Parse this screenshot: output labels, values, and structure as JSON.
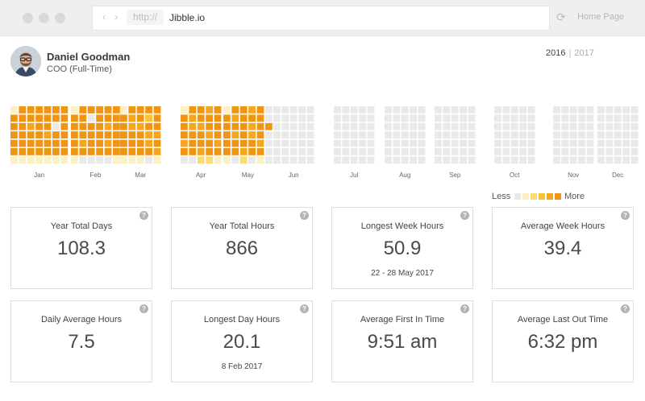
{
  "browser": {
    "protocol": "http://",
    "url": "Jibble.io",
    "home_label": "Home Page"
  },
  "user": {
    "name": "Daniel Goodman",
    "role": "COO (Full-Time)"
  },
  "year_selector": {
    "years": [
      "2016",
      "2017"
    ],
    "selected": "2016",
    "separator": "|"
  },
  "heatmap": {
    "months": [
      "Jan",
      "Feb",
      "Mar",
      "Apr",
      "May",
      "Jun",
      "Jul",
      "Aug",
      "Sep",
      "Oct",
      "Nov",
      "Dec"
    ],
    "legend_less": "Less",
    "legend_more": "More",
    "scale_colors": [
      "#e9e9e9",
      "#fbf1c4",
      "#f9dd72",
      "#f8c232",
      "#f4a61e",
      "#ef9413"
    ],
    "empty_color": "#e9e9e9",
    "month_grid": [
      [
        [
          1,
          5,
          5,
          5,
          5,
          5,
          1
        ],
        [
          5,
          5,
          5,
          5,
          5,
          5,
          1
        ],
        [
          5,
          5,
          4,
          5,
          5,
          5,
          1
        ],
        [
          5,
          5,
          5,
          5,
          5,
          5,
          1
        ],
        [
          5,
          5,
          5,
          4,
          5,
          5,
          1
        ],
        [
          5,
          5,
          0,
          5,
          5,
          5,
          1
        ],
        [
          5,
          5,
          5,
          5,
          5,
          5,
          1
        ]
      ],
      [
        [
          1,
          5,
          5,
          5,
          5,
          5,
          1
        ],
        [
          5,
          5,
          5,
          5,
          4,
          5,
          0
        ],
        [
          5,
          0,
          5,
          5,
          5,
          5,
          0
        ],
        [
          5,
          5,
          5,
          5,
          5,
          5,
          0
        ],
        [
          5,
          5,
          4,
          5,
          4,
          5,
          0
        ],
        [
          5,
          5,
          5,
          5,
          5,
          5,
          1
        ]
      ],
      [
        [
          1,
          5,
          5,
          5,
          5,
          5,
          1
        ],
        [
          5,
          4,
          4,
          5,
          5,
          5,
          1
        ],
        [
          5,
          5,
          4,
          5,
          5,
          5,
          1
        ],
        [
          5,
          3,
          5,
          4,
          4,
          5,
          0
        ],
        [
          5,
          5,
          5,
          4,
          5,
          4,
          1
        ]
      ],
      [
        [
          1,
          5,
          5,
          5,
          4,
          5,
          0
        ],
        [
          5,
          4,
          4,
          5,
          5,
          5,
          0
        ],
        [
          5,
          5,
          4,
          5,
          5,
          4,
          2
        ],
        [
          4,
          5,
          5,
          4,
          5,
          5,
          2
        ],
        [
          5,
          5,
          5,
          5,
          4,
          5,
          1
        ]
      ],
      [
        [
          1,
          5,
          5,
          5,
          5,
          5,
          1
        ],
        [
          5,
          4,
          5,
          4,
          5,
          5,
          0
        ],
        [
          5,
          5,
          5,
          5,
          5,
          4,
          2
        ],
        [
          4,
          5,
          4,
          4,
          5,
          5,
          0
        ],
        [
          5,
          5,
          5,
          5,
          4,
          5,
          1
        ],
        [
          0,
          0,
          5,
          0,
          0,
          0,
          0
        ]
      ],
      [
        [
          0,
          0,
          0,
          0,
          0,
          0,
          0
        ],
        [
          0,
          0,
          0,
          0,
          0,
          0,
          0
        ],
        [
          0,
          0,
          0,
          0,
          0,
          0,
          0
        ],
        [
          0,
          0,
          0,
          0,
          0,
          0,
          0
        ],
        [
          0,
          0,
          0,
          0,
          0,
          0,
          0
        ]
      ],
      [
        [
          0,
          0,
          0,
          0,
          0,
          0,
          0
        ],
        [
          0,
          0,
          0,
          0,
          0,
          0,
          0
        ],
        [
          0,
          0,
          0,
          0,
          0,
          0,
          0
        ],
        [
          0,
          0,
          0,
          0,
          0,
          0,
          0
        ],
        [
          0,
          0,
          0,
          0,
          0,
          0,
          0
        ]
      ],
      [
        [
          0,
          0,
          0,
          0,
          0,
          0,
          0
        ],
        [
          0,
          0,
          0,
          0,
          0,
          0,
          0
        ],
        [
          0,
          0,
          0,
          0,
          0,
          0,
          0
        ],
        [
          0,
          0,
          0,
          0,
          0,
          0,
          0
        ],
        [
          0,
          0,
          0,
          0,
          0,
          0,
          0
        ]
      ],
      [
        [
          0,
          0,
          0,
          0,
          0,
          0,
          0
        ],
        [
          0,
          0,
          0,
          0,
          0,
          0,
          0
        ],
        [
          0,
          0,
          0,
          0,
          0,
          0,
          0
        ],
        [
          0,
          0,
          0,
          0,
          0,
          0,
          0
        ],
        [
          0,
          0,
          0,
          0,
          0,
          0,
          0
        ]
      ],
      [
        [
          0,
          0,
          0,
          0,
          0,
          0,
          0
        ],
        [
          0,
          0,
          0,
          0,
          0,
          0,
          0
        ],
        [
          0,
          0,
          0,
          0,
          0,
          0,
          0
        ],
        [
          0,
          0,
          0,
          0,
          0,
          0,
          0
        ],
        [
          0,
          0,
          0,
          0,
          0,
          0,
          0
        ]
      ],
      [
        [
          0,
          0,
          0,
          0,
          0,
          0,
          0
        ],
        [
          0,
          0,
          0,
          0,
          0,
          0,
          0
        ],
        [
          0,
          0,
          0,
          0,
          0,
          0,
          0
        ],
        [
          0,
          0,
          0,
          0,
          0,
          0,
          0
        ],
        [
          0,
          0,
          0,
          0,
          0,
          0,
          0
        ]
      ],
      [
        [
          0,
          0,
          0,
          0,
          0,
          0,
          0
        ],
        [
          0,
          0,
          0,
          0,
          0,
          0,
          0
        ],
        [
          0,
          0,
          0,
          0,
          0,
          0,
          0
        ],
        [
          0,
          0,
          0,
          0,
          0,
          0,
          0
        ],
        [
          0,
          0,
          0,
          0,
          0,
          0,
          0
        ]
      ]
    ]
  },
  "stats": [
    {
      "title": "Year Total Days",
      "value": "108.3",
      "sub": ""
    },
    {
      "title": "Year Total Hours",
      "value": "866",
      "sub": ""
    },
    {
      "title": "Longest Week Hours",
      "value": "50.9",
      "sub": "22 - 28 May 2017"
    },
    {
      "title": "Average Week Hours",
      "value": "39.4",
      "sub": ""
    },
    {
      "title": "Daily Average Hours",
      "value": "7.5",
      "sub": ""
    },
    {
      "title": "Longest Day Hours",
      "value": "20.1",
      "sub": "8 Feb 2017"
    },
    {
      "title": "Average First In Time",
      "value": "9:51 am",
      "sub": ""
    },
    {
      "title": "Average Last Out Time",
      "value": "6:32 pm",
      "sub": ""
    }
  ],
  "help_glyph": "?"
}
